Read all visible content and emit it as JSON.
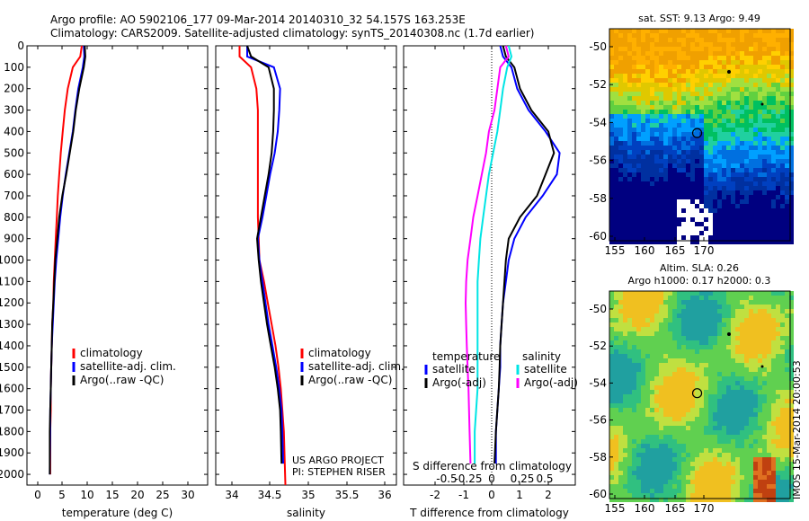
{
  "header": {
    "line1": "Argo profile: AO 5902106_177 09-Mar-2014 20140310_32 54.157S 163.253E",
    "line2": "Climatology: CARS2009. Satellite-adjusted climatology: synTS_20140308.nc (1.7d earlier)"
  },
  "colors": {
    "climatology": "#ff0000",
    "satellite": "#0000ff",
    "argo": "#000000",
    "cyan": "#00e5e5",
    "magenta": "#ff00ff"
  },
  "chart_data": [
    {
      "type": "line",
      "xlabel": "temperature (deg C)",
      "xticks": [
        "0",
        "5",
        "10",
        "15",
        "20",
        "25",
        "30"
      ],
      "xlim": [
        -1,
        31.5
      ],
      "ylim": [
        0,
        2050
      ],
      "yticks": [
        "0",
        "100",
        "200",
        "300",
        "400",
        "500",
        "600",
        "700",
        "800",
        "900",
        "1000",
        "1100",
        "1200",
        "1300",
        "1400",
        "1500",
        "1600",
        "1700",
        "1800",
        "1900",
        "2000"
      ],
      "legend": [
        "climatology",
        "satellite-adj. clim.",
        "Argo(..raw -QC)"
      ],
      "series": [
        {
          "name": "climatology",
          "color": "#ff0000",
          "x": [
            8.8,
            8.5,
            7.0,
            6.0,
            5.4,
            5.0,
            4.6,
            4.3,
            4.0,
            3.8,
            3.6,
            3.4,
            3.2,
            3.1,
            2.9,
            2.8,
            2.7,
            2.6,
            2.6,
            2.5,
            2.5
          ],
          "y": [
            0,
            50,
            100,
            200,
            300,
            400,
            500,
            600,
            700,
            800,
            900,
            1000,
            1100,
            1200,
            1300,
            1400,
            1500,
            1600,
            1700,
            1800,
            2000
          ]
        },
        {
          "name": "satellite-adj. clim.",
          "color": "#0000ff",
          "x": [
            9.2,
            9.3,
            9.0,
            8.1,
            7.5,
            7.0,
            6.3,
            5.6,
            5.0,
            4.5,
            4.1,
            3.7,
            3.4,
            3.2,
            3.0,
            2.8,
            2.7,
            2.6,
            2.5,
            2.5,
            2.4
          ],
          "y": [
            0,
            50,
            100,
            200,
            300,
            400,
            500,
            600,
            700,
            800,
            900,
            1000,
            1100,
            1200,
            1300,
            1400,
            1500,
            1600,
            1700,
            1800,
            2000
          ]
        },
        {
          "name": "Argo(..raw -QC)",
          "color": "#000000",
          "x": [
            9.4,
            9.5,
            9.2,
            8.3,
            7.6,
            7.1,
            6.4,
            5.7,
            4.9,
            4.3,
            3.9,
            3.5,
            3.3,
            3.1,
            2.9,
            2.8,
            2.7,
            2.6,
            2.5,
            2.4,
            2.4
          ],
          "y": [
            0,
            50,
            100,
            200,
            300,
            400,
            500,
            600,
            700,
            800,
            900,
            1000,
            1100,
            1200,
            1300,
            1400,
            1500,
            1600,
            1700,
            1800,
            2000
          ]
        }
      ]
    },
    {
      "type": "line",
      "xlabel": "salinity",
      "xticks": [
        "34",
        "34.5",
        "35",
        "35.5",
        "36"
      ],
      "xlim": [
        33.8,
        36.1
      ],
      "ylim": [
        0,
        2050
      ],
      "legend": [
        "climatology",
        "satellite-adj. clim.",
        "Argo(..raw -QC)"
      ],
      "annotations": [
        "US ARGO PROJECT",
        "PI: STEPHEN RISER"
      ],
      "series": [
        {
          "name": "climatology",
          "color": "#ff0000",
          "x": [
            34.1,
            34.1,
            34.25,
            34.32,
            34.34,
            34.34,
            34.34,
            34.34,
            34.34,
            34.34,
            34.35,
            34.36,
            34.42,
            34.47,
            34.52,
            34.57,
            34.61,
            34.64,
            34.66,
            34.68,
            34.7
          ],
          "y": [
            0,
            50,
            100,
            200,
            300,
            400,
            500,
            600,
            700,
            800,
            900,
            1000,
            1100,
            1200,
            1300,
            1400,
            1500,
            1600,
            1700,
            1800,
            2050
          ]
        },
        {
          "name": "satellite-adj. clim.",
          "color": "#0000ff",
          "x": [
            34.2,
            34.2,
            34.55,
            34.63,
            34.62,
            34.6,
            34.56,
            34.5,
            34.45,
            34.4,
            34.34,
            34.36,
            34.4,
            34.44,
            34.48,
            34.53,
            34.58,
            34.62,
            34.65,
            34.66,
            34.67
          ],
          "y": [
            0,
            50,
            100,
            200,
            300,
            400,
            500,
            600,
            700,
            800,
            900,
            1000,
            1100,
            1200,
            1300,
            1400,
            1500,
            1600,
            1700,
            1800,
            1950
          ]
        },
        {
          "name": "Argo(..raw -QC)",
          "color": "#000000",
          "x": [
            34.2,
            34.25,
            34.48,
            34.55,
            34.55,
            34.54,
            34.52,
            34.48,
            34.43,
            34.38,
            34.33,
            34.35,
            34.38,
            34.42,
            34.46,
            34.51,
            34.56,
            34.6,
            34.63,
            34.64,
            34.65
          ],
          "y": [
            0,
            50,
            100,
            200,
            300,
            400,
            500,
            600,
            700,
            800,
            900,
            1000,
            1100,
            1200,
            1300,
            1400,
            1500,
            1600,
            1700,
            1800,
            1950
          ]
        }
      ]
    },
    {
      "type": "line",
      "xlabel": "T difference from climatology",
      "xticks": [
        "-2",
        "-1",
        "0",
        "1",
        "2"
      ],
      "xlim": [
        -2.5,
        2.8
      ],
      "top_axis_label": "S difference from climatology",
      "top_xticks": [
        "-0.5",
        "-0.25",
        "0",
        "0.25",
        "0.5"
      ],
      "ylim": [
        0,
        2050
      ],
      "legend_headers": [
        "temperature",
        "salinity"
      ],
      "legend": [
        "satellite",
        "Argo(-adj)",
        "satellite",
        "Argo(-adj)"
      ],
      "series": [
        {
          "name": "satellite",
          "group": "temperature",
          "color": "#0000ff",
          "x": [
            0.3,
            0.4,
            0.7,
            0.9,
            1.3,
            1.9,
            2.4,
            2.3,
            1.8,
            1.2,
            0.8,
            0.6,
            0.5,
            0.4,
            0.35,
            0.3,
            0.3,
            0.25,
            0.2,
            0.15,
            0.15
          ],
          "y": [
            0,
            50,
            100,
            200,
            300,
            400,
            500,
            600,
            700,
            800,
            900,
            1000,
            1100,
            1200,
            1300,
            1400,
            1500,
            1600,
            1700,
            1800,
            1950
          ]
        },
        {
          "name": "Argo(-adj)",
          "group": "temperature",
          "color": "#000000",
          "x": [
            0.4,
            0.5,
            0.8,
            1.0,
            1.4,
            2.0,
            2.2,
            1.9,
            1.6,
            1.0,
            0.6,
            0.5,
            0.45,
            0.4,
            0.35,
            0.3,
            0.28,
            0.25,
            0.2,
            0.15,
            0.1
          ],
          "y": [
            0,
            50,
            100,
            200,
            300,
            400,
            500,
            600,
            700,
            800,
            900,
            1000,
            1100,
            1200,
            1300,
            1400,
            1500,
            1600,
            1700,
            1800,
            1950
          ]
        },
        {
          "name": "satellite",
          "group": "salinity",
          "color": "#00e5e5",
          "x": [
            0.6,
            0.7,
            0.55,
            0.4,
            0.3,
            0.2,
            0.05,
            -0.1,
            -0.2,
            -0.3,
            -0.4,
            -0.45,
            -0.5,
            -0.5,
            -0.5,
            -0.5,
            -0.5,
            -0.5,
            -0.55,
            -0.6,
            -0.6
          ],
          "y": [
            0,
            50,
            100,
            200,
            300,
            400,
            500,
            600,
            700,
            800,
            900,
            1000,
            1100,
            1200,
            1300,
            1400,
            1500,
            1600,
            1700,
            1800,
            1950
          ]
        },
        {
          "name": "Argo(-adj)",
          "group": "salinity",
          "color": "#ff00ff",
          "x": [
            0.5,
            0.6,
            0.3,
            0.2,
            0.1,
            -0.1,
            -0.2,
            -0.35,
            -0.5,
            -0.65,
            -0.75,
            -0.85,
            -0.9,
            -0.92,
            -0.9,
            -0.88,
            -0.85,
            -0.82,
            -0.8,
            -0.78,
            -0.75
          ],
          "y": [
            0,
            50,
            100,
            200,
            300,
            400,
            500,
            600,
            700,
            800,
            900,
            1000,
            1100,
            1200,
            1300,
            1400,
            1500,
            1600,
            1700,
            1800,
            1950
          ]
        }
      ]
    },
    {
      "type": "heatmap",
      "title": "sat. SST: 9.13 Argo: 9.49",
      "xticks": [
        "155",
        "160",
        "165",
        "170"
      ],
      "yticks": [
        "-50",
        "-52",
        "-54",
        "-56",
        "-58",
        "-60"
      ],
      "xlim": [
        155,
        172
      ],
      "ylim": [
        -60,
        -48.5
      ],
      "marker": {
        "lon": 163.25,
        "lat": -54.16
      }
    },
    {
      "type": "heatmap",
      "title": "Altim. SLA: 0.26",
      "subtitle": "Argo h1000: 0.17 h2000: 0.3",
      "xticks": [
        "155",
        "160",
        "165",
        "170"
      ],
      "yticks": [
        "-50",
        "-52",
        "-54",
        "-56",
        "-58",
        "-60"
      ],
      "xlim": [
        155,
        172
      ],
      "ylim": [
        -60,
        -48.5
      ],
      "marker": {
        "lon": 163.25,
        "lat": -54.16
      }
    }
  ],
  "footer": {
    "imos_stamp": "IMOS 15-Mar-2014 20:00:53"
  }
}
